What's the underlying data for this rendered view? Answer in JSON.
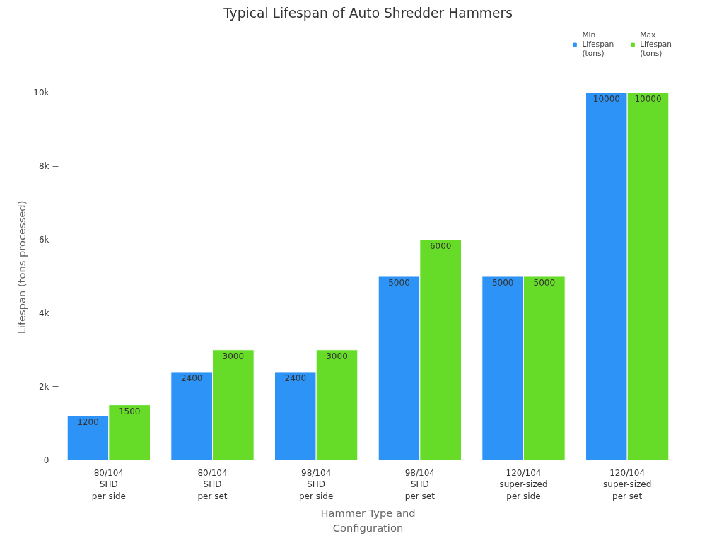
{
  "chart_data": {
    "type": "bar",
    "title": "Typical Lifespan of Auto Shredder Hammers",
    "xlabel": "Hammer Type and Configuration",
    "ylabel": "Lifespan (tons processed)",
    "categories": [
      "80/104\nSHD\nper side",
      "80/104\nSHD\nper set",
      "98/104\nSHD\nper side",
      "98/104\nSHD\nper set",
      "120/104\nsuper-sized\nper side",
      "120/104\nsuper-sized\nper set"
    ],
    "series": [
      {
        "name": "Min Lifespan (tons)",
        "color": "#2e93f6",
        "values": [
          1200,
          2400,
          2400,
          5000,
          5000,
          10000
        ]
      },
      {
        "name": "Max Lifespan (tons)",
        "color": "#66db28",
        "values": [
          1500,
          3000,
          3000,
          6000,
          5000,
          10000
        ]
      }
    ],
    "ylim": [
      0,
      10500
    ],
    "yticks": [
      0,
      {
        "value": 2000,
        "label": "2k"
      },
      {
        "value": 4000,
        "label": "4k"
      },
      {
        "value": 6000,
        "label": "6k"
      },
      {
        "value": 8000,
        "label": "8k"
      },
      {
        "value": 10000,
        "label": "10k"
      }
    ],
    "data_labels": true,
    "grid": false,
    "legend": "top right"
  }
}
